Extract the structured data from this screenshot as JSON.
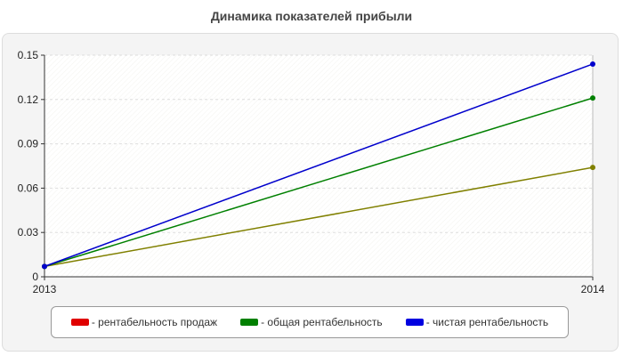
{
  "chart_data": {
    "type": "line",
    "title": "Динамика показателей прибыли",
    "xlabel": "",
    "ylabel": "",
    "categories": [
      "2013",
      "2014"
    ],
    "ylim": [
      0,
      0.15
    ],
    "y_ticks": [
      "0",
      "0.03",
      "0.06",
      "0.09",
      "0.12",
      "0.15"
    ],
    "y_tick_values": [
      0,
      0.03,
      0.06,
      0.09,
      0.12,
      0.15
    ],
    "grid": true,
    "legend_position": "bottom",
    "series": [
      {
        "name": "- рентабельность продаж",
        "values": [
          0.007,
          0.074
        ],
        "color": "#e00000",
        "line_color": "#808000"
      },
      {
        "name": "- общая рентабельность",
        "values": [
          0.007,
          0.121
        ],
        "color": "#008000",
        "line_color": "#008000"
      },
      {
        "name": "- чистая рентабельность",
        "values": [
          0.007,
          0.144
        ],
        "color": "#0000e0",
        "line_color": "#0000cc"
      }
    ]
  }
}
